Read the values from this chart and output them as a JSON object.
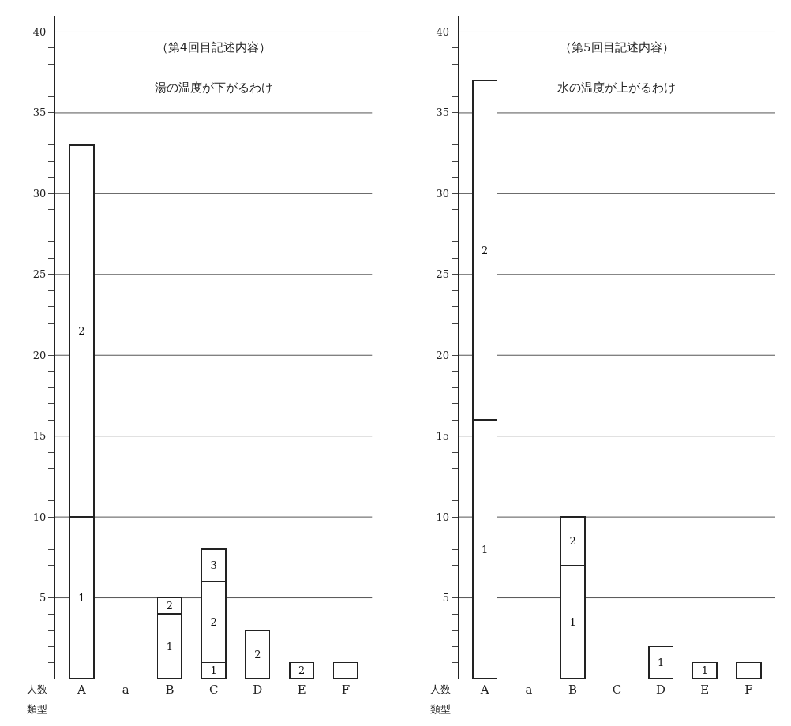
{
  "chart_data": [
    {
      "type": "bar",
      "stacked": true,
      "title": "（第4回目記述内容）",
      "subtitle": "湯の温度が下がるわけ",
      "xlabel": "類型",
      "ylabel": "人数",
      "categories": [
        "A",
        "a",
        "B",
        "C",
        "D",
        "E",
        "F"
      ],
      "series": [
        {
          "name": "1",
          "color": "#ffffff",
          "values": [
            10,
            null,
            4,
            1,
            null,
            null,
            null
          ]
        },
        {
          "name": "2",
          "color": "#ffffff",
          "values": [
            23,
            null,
            1,
            5,
            3,
            1,
            null
          ]
        },
        {
          "name": "3",
          "color": "#ffffff",
          "values": [
            null,
            null,
            null,
            2,
            null,
            null,
            null
          ]
        },
        {
          "color": "#ffffff",
          "values": [
            null,
            null,
            null,
            null,
            null,
            null,
            1
          ]
        }
      ],
      "ylim": [
        0,
        41
      ],
      "yticks": [
        {
          "value": 1,
          "label": null
        },
        {
          "value": 2,
          "label": null
        },
        {
          "value": 3,
          "label": null
        },
        {
          "value": 4,
          "label": null
        },
        5,
        {
          "value": 6,
          "label": null
        },
        {
          "value": 7,
          "label": null
        },
        {
          "value": 8,
          "label": null
        },
        {
          "value": 9,
          "label": null
        },
        10,
        {
          "value": 11,
          "label": null
        },
        {
          "value": 12,
          "label": null
        },
        {
          "value": 13,
          "label": null
        },
        {
          "value": 14,
          "label": null
        },
        15,
        {
          "value": 16,
          "label": null
        },
        {
          "value": 17,
          "label": null
        },
        {
          "value": 18,
          "label": null
        },
        {
          "value": 19,
          "label": null
        },
        20,
        {
          "value": 21,
          "label": null
        },
        {
          "value": 22,
          "label": null
        },
        {
          "value": 23,
          "label": null
        },
        {
          "value": 24,
          "label": null
        },
        25,
        {
          "value": 26,
          "label": null
        },
        {
          "value": 27,
          "label": null
        },
        {
          "value": 28,
          "label": null
        },
        {
          "value": 29,
          "label": null
        },
        30,
        {
          "value": 31,
          "label": null
        },
        {
          "value": 32,
          "label": null
        },
        {
          "value": 33,
          "label": null
        },
        {
          "value": 34,
          "label": null
        },
        35,
        {
          "value": 36,
          "label": null
        },
        {
          "value": 37,
          "label": null
        },
        {
          "value": 38,
          "label": null
        },
        {
          "value": 39,
          "label": null
        },
        40
      ],
      "grid": "y"
    },
    {
      "type": "bar",
      "stacked": true,
      "title": "（第5回目記述内容）",
      "subtitle": "水の温度が上がるわけ",
      "xlabel": "類型",
      "ylabel": "人数",
      "categories": [
        "A",
        "a",
        "B",
        "C",
        "D",
        "E",
        "F"
      ],
      "series": [
        {
          "name": "1",
          "color": "#ffffff",
          "values": [
            16,
            null,
            7,
            null,
            2,
            1,
            null
          ]
        },
        {
          "name": "2",
          "color": "#ffffff",
          "values": [
            21,
            null,
            3,
            null,
            null,
            null,
            null
          ]
        },
        {
          "color": "#ffffff",
          "values": [
            null,
            null,
            null,
            null,
            null,
            null,
            1
          ]
        }
      ],
      "ylim": [
        0,
        41
      ],
      "yticks": [
        {
          "value": 1,
          "label": null
        },
        {
          "value": 2,
          "label": null
        },
        {
          "value": 3,
          "label": null
        },
        {
          "value": 4,
          "label": null
        },
        5,
        {
          "value": 6,
          "label": null
        },
        {
          "value": 7,
          "label": null
        },
        {
          "value": 8,
          "label": null
        },
        {
          "value": 9,
          "label": null
        },
        10,
        {
          "value": 11,
          "label": null
        },
        {
          "value": 12,
          "label": null
        },
        {
          "value": 13,
          "label": null
        },
        {
          "value": 14,
          "label": null
        },
        15,
        {
          "value": 16,
          "label": null
        },
        {
          "value": 17,
          "label": null
        },
        {
          "value": 18,
          "label": null
        },
        {
          "value": 19,
          "label": null
        },
        20,
        {
          "value": 21,
          "label": null
        },
        {
          "value": 22,
          "label": null
        },
        {
          "value": 23,
          "label": null
        },
        {
          "value": 24,
          "label": null
        },
        25,
        {
          "value": 26,
          "label": null
        },
        {
          "value": 27,
          "label": null
        },
        {
          "value": 28,
          "label": null
        },
        {
          "value": 29,
          "label": null
        },
        30,
        {
          "value": 31,
          "label": null
        },
        {
          "value": 32,
          "label": null
        },
        {
          "value": 33,
          "label": null
        },
        {
          "value": 34,
          "label": null
        },
        35,
        {
          "value": 36,
          "label": null
        },
        {
          "value": 37,
          "label": null
        },
        {
          "value": 38,
          "label": null
        },
        {
          "value": 39,
          "label": null
        },
        40
      ],
      "grid": "y"
    }
  ]
}
